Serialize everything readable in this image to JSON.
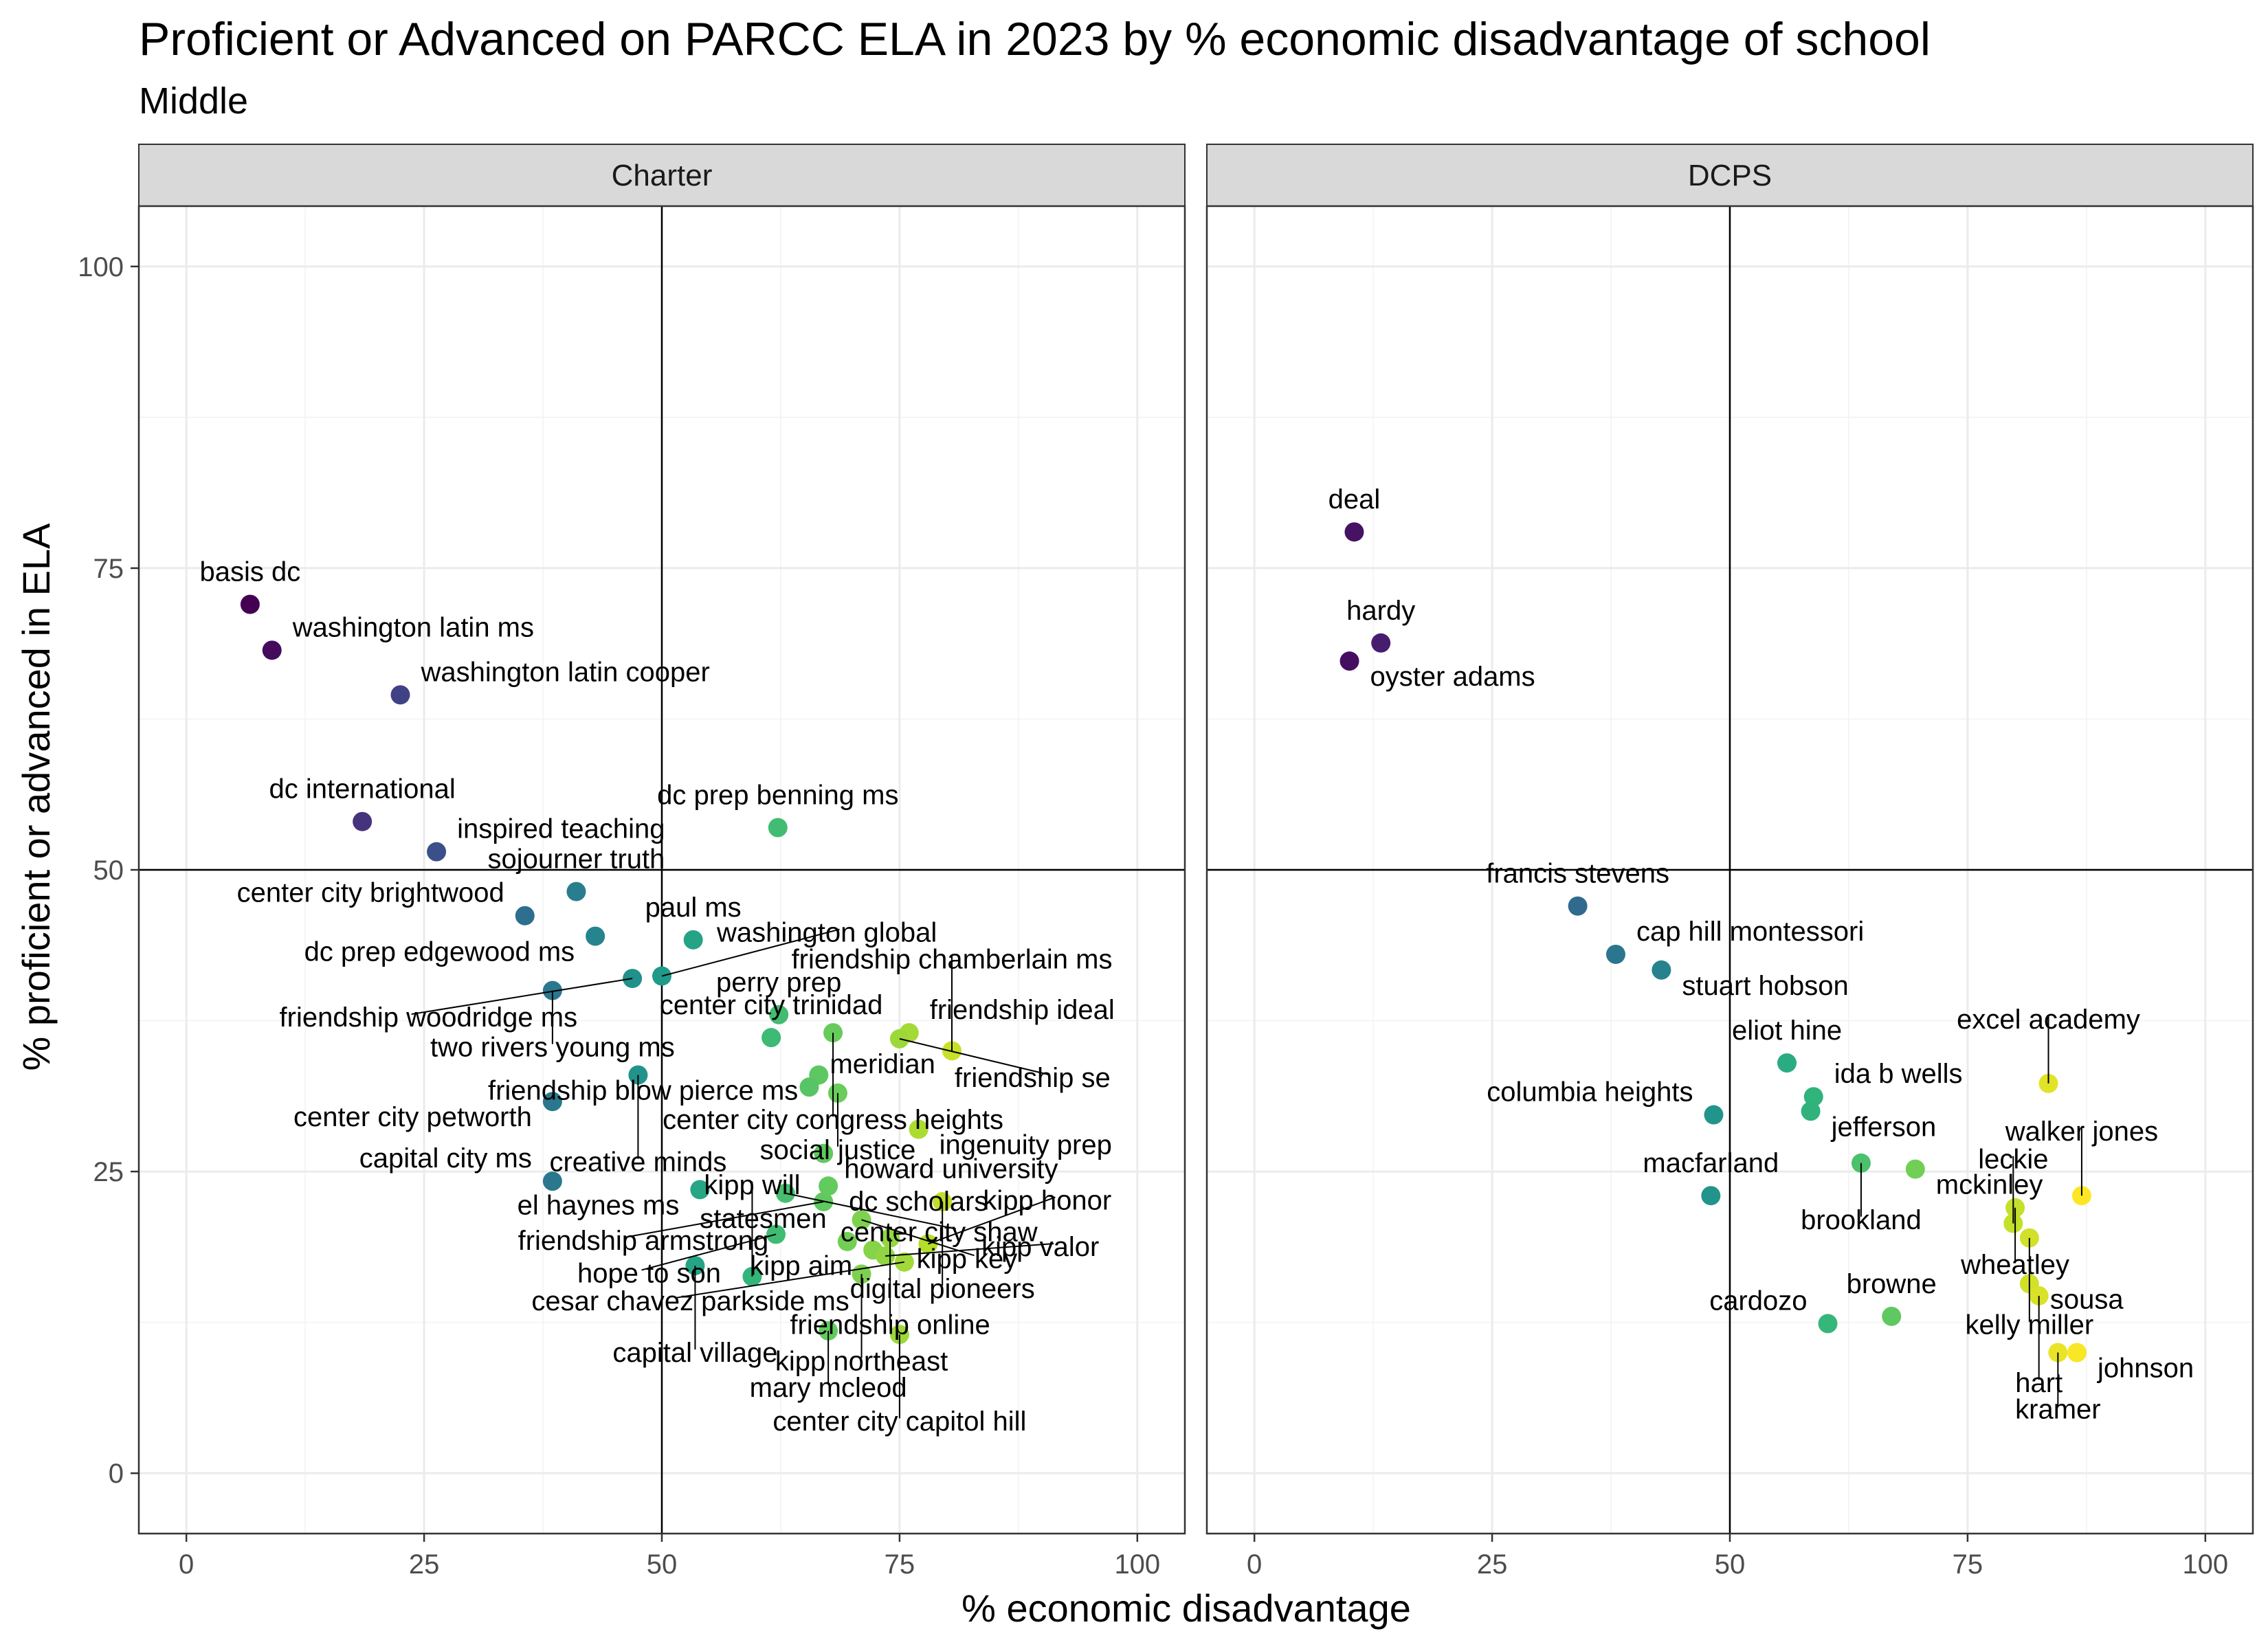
{
  "chart_data": {
    "type": "scatter",
    "title": "Proficient or Advanced on PARCC ELA in 2023 by % economic disadvantage of school",
    "subtitle": "Middle",
    "xlabel": "% economic disadvantage",
    "ylabel": "% proficient or advanced in ELA",
    "xlim": [
      -5,
      105
    ],
    "ylim": [
      -5,
      105
    ],
    "x_ticks": [
      0,
      25,
      50,
      75,
      100
    ],
    "y_ticks": [
      0,
      25,
      50,
      75,
      100
    ],
    "reference_lines": {
      "x": 50,
      "y": 50
    },
    "color_scale": "viridis (by % economic disadvantage)",
    "grid": true,
    "facets": [
      {
        "name": "Charter",
        "points": [
          {
            "label": "basis dc",
            "x": 6.7,
            "y": 72.0
          },
          {
            "label": "washington latin ms",
            "x": 9.0,
            "y": 68.2
          },
          {
            "label": "washington latin cooper",
            "x": 22.5,
            "y": 64.5
          },
          {
            "label": "dc international",
            "x": 18.5,
            "y": 54.0
          },
          {
            "label": "inspired teaching",
            "x": 26.3,
            "y": 51.5
          },
          {
            "label": "sojourner truth",
            "x": 41.0,
            "y": 48.2
          },
          {
            "label": "dc prep benning ms",
            "x": 62.2,
            "y": 53.5
          },
          {
            "label": "center city brightwood",
            "x": 35.6,
            "y": 46.2
          },
          {
            "label": "paul ms",
            "x": 53.3,
            "y": 44.2
          },
          {
            "label": "perry prep",
            "x": 62.3,
            "y": 38.0
          },
          {
            "label": "dc prep edgewood ms",
            "x": 43.0,
            "y": 44.5
          },
          {
            "label": "friendship woodridge ms",
            "x": 46.9,
            "y": 41.0
          },
          {
            "label": "washington global",
            "x": 50.0,
            "y": 41.2
          },
          {
            "label": "friendship ideal",
            "x": 76.0,
            "y": 36.5
          },
          {
            "label": "two rivers young ms",
            "x": 38.5,
            "y": 40.0
          },
          {
            "label": "center city congress heights",
            "x": 68.0,
            "y": 36.5
          },
          {
            "label": "friendship se",
            "x": 75.0,
            "y": 36.0
          },
          {
            "label": "center city trinidad",
            "x": 61.5,
            "y": 36.1
          },
          {
            "label": "creative minds",
            "x": 47.5,
            "y": 33.0
          },
          {
            "label": "friendship chamberlain ms",
            "x": 80.5,
            "y": 35.0
          },
          {
            "label": "friendship blow pierce ms",
            "x": 66.5,
            "y": 33.0
          },
          {
            "label": "meridian",
            "x": 65.5,
            "y": 32.0
          },
          {
            "label": "center city petworth",
            "x": 38.5,
            "y": 30.8
          },
          {
            "label": "howard university",
            "x": 67.0,
            "y": 26.5
          },
          {
            "label": "social justice",
            "x": 68.5,
            "y": 31.5
          },
          {
            "label": "ingenuity prep",
            "x": 77.0,
            "y": 28.5
          },
          {
            "label": "friendship armstrong",
            "x": 67.0,
            "y": 22.5
          },
          {
            "label": "el haynes ms",
            "x": 54.0,
            "y": 23.5
          },
          {
            "label": "center city shaw",
            "x": 63.0,
            "y": 23.2
          },
          {
            "label": "digital pioneers",
            "x": 79.5,
            "y": 22.5
          },
          {
            "label": "capital city ms",
            "x": 38.5,
            "y": 24.2
          },
          {
            "label": "dc scholars",
            "x": 67.5,
            "y": 23.8
          },
          {
            "label": "friendship online",
            "x": 74.0,
            "y": 19.5
          },
          {
            "label": "hope to son",
            "x": 62.0,
            "y": 19.8
          },
          {
            "label": "kipp key",
            "x": 71.0,
            "y": 21.0
          },
          {
            "label": "kipp honor",
            "x": 78.0,
            "y": 19.0
          },
          {
            "label": "capital village",
            "x": 53.5,
            "y": 17.2
          },
          {
            "label": "statesmen",
            "x": 69.5,
            "y": 19.2
          },
          {
            "label": "cesar chavez parkside ms",
            "x": 75.5,
            "y": 17.5
          },
          {
            "label": "kipp will",
            "x": 59.5,
            "y": 16.3
          },
          {
            "label": "kipp northeast",
            "x": 71.0,
            "y": 16.5
          },
          {
            "label": "kipp aim",
            "x": 72.2,
            "y": 18.5
          },
          {
            "label": "mary mcleod",
            "x": 67.5,
            "y": 11.8
          },
          {
            "label": "kipp valor",
            "x": 73.5,
            "y": 18.0
          },
          {
            "label": "center city capitol hill",
            "x": 75.0,
            "y": 11.5
          }
        ]
      },
      {
        "name": "DCPS",
        "points": [
          {
            "label": "deal",
            "x": 10.5,
            "y": 78.0
          },
          {
            "label": "hardy",
            "x": 13.3,
            "y": 68.8
          },
          {
            "label": "oyster adams",
            "x": 10.0,
            "y": 67.3
          },
          {
            "label": "francis stevens",
            "x": 34.0,
            "y": 47.0
          },
          {
            "label": "cap hill montessori",
            "x": 38.0,
            "y": 43.0
          },
          {
            "label": "stuart hobson",
            "x": 42.8,
            "y": 41.7
          },
          {
            "label": "eliot hine",
            "x": 56.0,
            "y": 34.0
          },
          {
            "label": "ida b wells",
            "x": 58.8,
            "y": 31.2
          },
          {
            "label": "columbia heights",
            "x": 48.3,
            "y": 29.7
          },
          {
            "label": "jefferson",
            "x": 58.5,
            "y": 30.0
          },
          {
            "label": "excel academy",
            "x": 83.5,
            "y": 32.3
          },
          {
            "label": "mckinley",
            "x": 69.5,
            "y": 25.2
          },
          {
            "label": "brookland",
            "x": 63.8,
            "y": 25.7
          },
          {
            "label": "macfarland",
            "x": 48.0,
            "y": 23.0
          },
          {
            "label": "wheatley",
            "x": 80.0,
            "y": 22.0
          },
          {
            "label": "walker jones",
            "x": 87.0,
            "y": 23.0
          },
          {
            "label": "leckie",
            "x": 79.8,
            "y": 20.7
          },
          {
            "label": "kelly miller",
            "x": 81.5,
            "y": 19.5
          },
          {
            "label": "sousa",
            "x": 81.5,
            "y": 15.7
          },
          {
            "label": "hart",
            "x": 82.5,
            "y": 14.7
          },
          {
            "label": "browne",
            "x": 67.0,
            "y": 13.0
          },
          {
            "label": "cardozo",
            "x": 60.3,
            "y": 12.4
          },
          {
            "label": "kramer",
            "x": 84.5,
            "y": 10.0
          },
          {
            "label": "johnson",
            "x": 86.5,
            "y": 10.0
          }
        ]
      }
    ]
  }
}
